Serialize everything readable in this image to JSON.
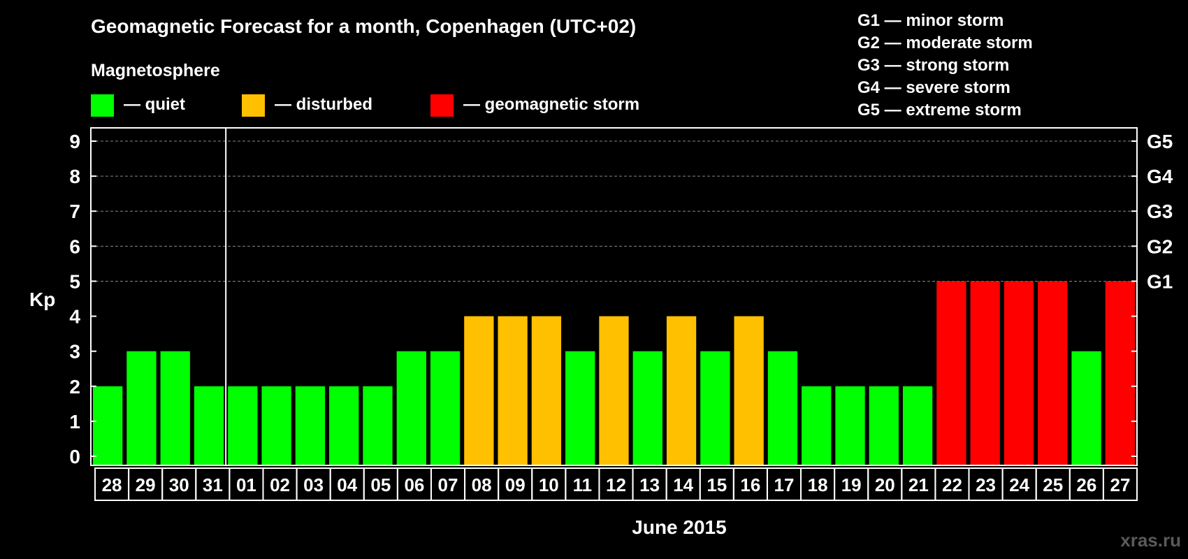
{
  "chart_data": {
    "type": "bar",
    "title": "Geomagnetic Forecast for a month, Copenhagen (UTC+02)",
    "ylabel": "Kp",
    "xlabel": "June 2015",
    "ylim": [
      0,
      9
    ],
    "y_ticks": [
      "0",
      "1",
      "2",
      "3",
      "4",
      "5",
      "6",
      "7",
      "8",
      "9"
    ],
    "grid": true,
    "legend_title": "Magnetosphere",
    "legend": [
      {
        "label": "— quiet",
        "color": "#00ff00"
      },
      {
        "label": "— disturbed",
        "color": "#ffc000"
      },
      {
        "label": "— geomagnetic storm",
        "color": "#ff0000"
      }
    ],
    "storm_scale": [
      "G1 — minor storm",
      "G2 — moderate storm",
      "G3 — strong storm",
      "G4 — severe storm",
      "G5 — extreme storm"
    ],
    "right_axis": [
      {
        "label": "G1",
        "kp": 5
      },
      {
        "label": "G2",
        "kp": 6
      },
      {
        "label": "G3",
        "kp": 7
      },
      {
        "label": "G4",
        "kp": 8
      },
      {
        "label": "G5",
        "kp": 9
      }
    ],
    "categories": [
      "28",
      "29",
      "30",
      "31",
      "01",
      "02",
      "03",
      "04",
      "05",
      "06",
      "07",
      "08",
      "09",
      "10",
      "11",
      "12",
      "13",
      "14",
      "15",
      "16",
      "17",
      "18",
      "19",
      "20",
      "21",
      "22",
      "23",
      "24",
      "25",
      "26",
      "27"
    ],
    "values": [
      2,
      3,
      3,
      2,
      2,
      2,
      2,
      2,
      2,
      3,
      3,
      4,
      4,
      4,
      3,
      4,
      3,
      4,
      3,
      4,
      3,
      2,
      2,
      2,
      2,
      5,
      5,
      5,
      5,
      3,
      5
    ],
    "month_divider_after": "31",
    "colors": {
      "quiet": "#00ff00",
      "disturbed": "#ffc000",
      "storm": "#ff0000",
      "background": "#000000"
    }
  },
  "watermark": "xras.ru"
}
